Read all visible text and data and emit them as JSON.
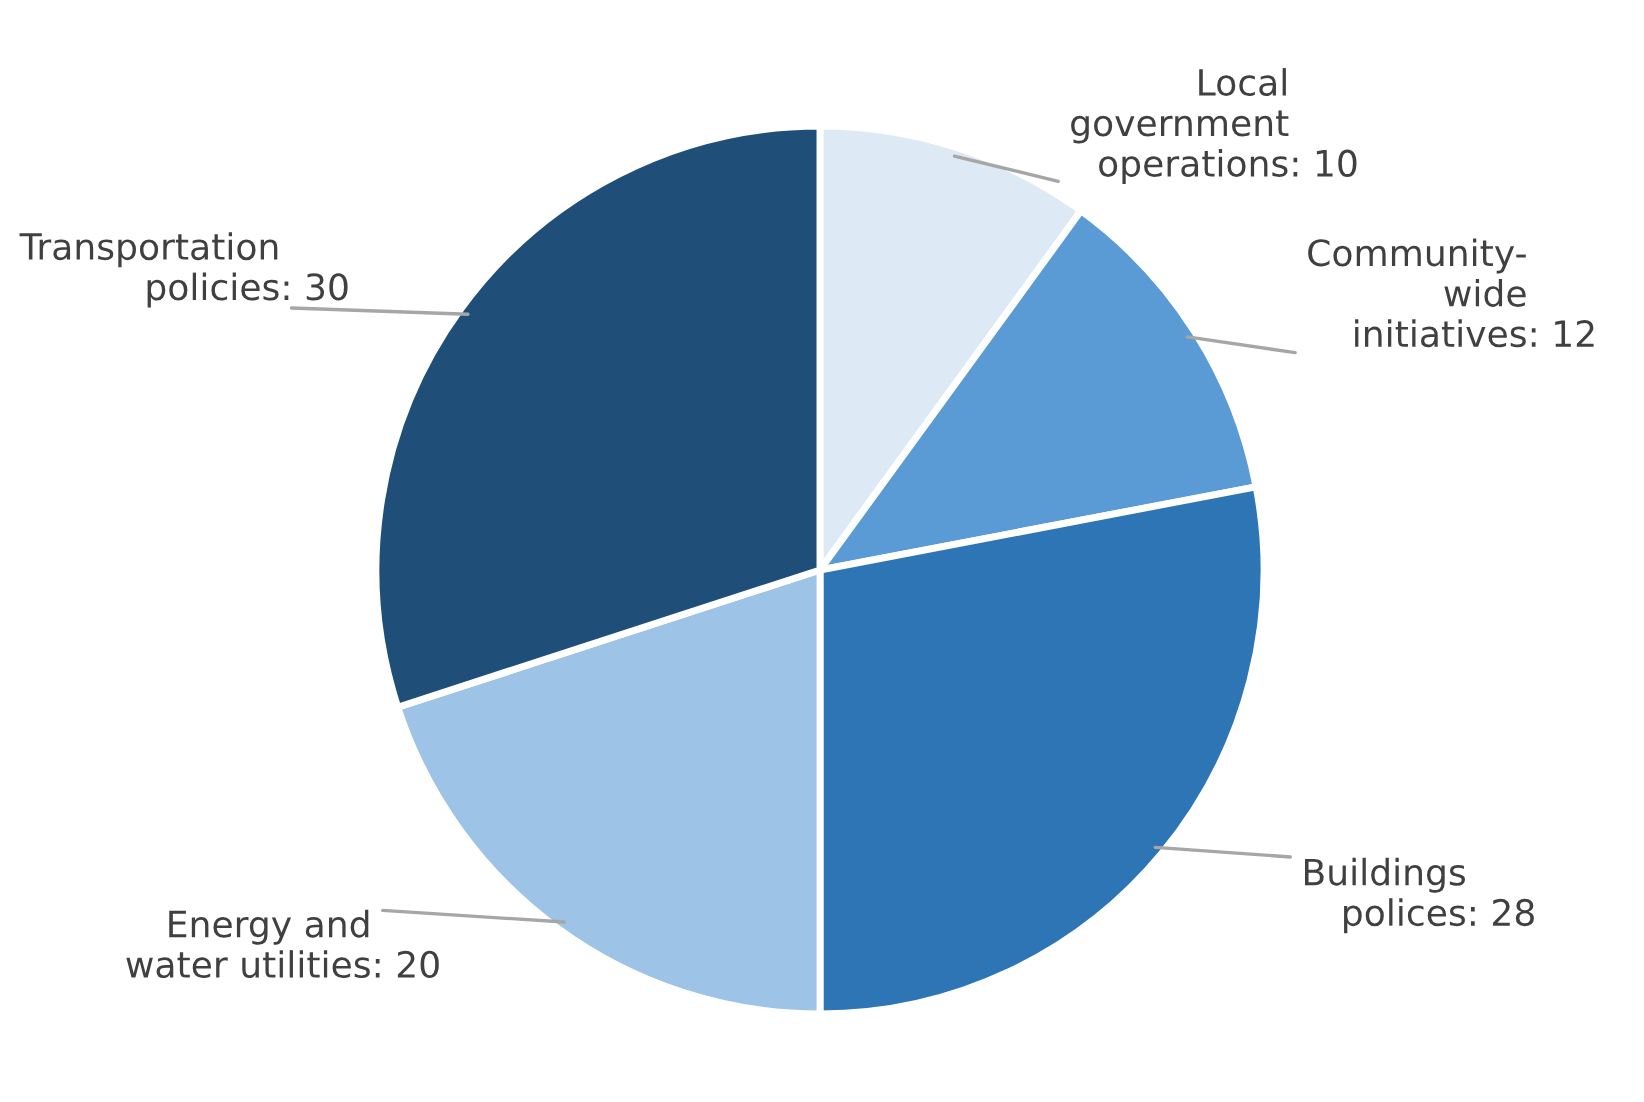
{
  "chart_data": {
    "type": "pie",
    "categories": [
      "Local\ngovernment\noperations",
      "Community-\nwide\ninitiatives",
      "Buildings\npolices",
      "Energy and\nwater utilities",
      "Transportation\npolicies"
    ],
    "values": [
      10,
      12,
      28,
      20,
      30
    ],
    "value_labels": [
      ": 10",
      ": 12",
      ": 28",
      ": 20",
      ": 30"
    ],
    "colors": [
      "#dde9f5",
      "#5b9bd5",
      "#2e75b6",
      "#9dc3e6",
      "#1f4e79"
    ],
    "legend": false
  }
}
